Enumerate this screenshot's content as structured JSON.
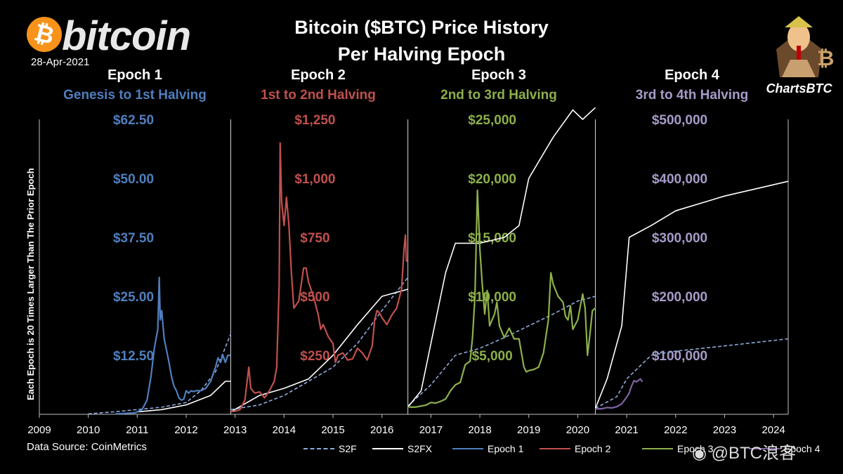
{
  "logo": {
    "word": "bitcoin",
    "symbol": "₿"
  },
  "date": "28-Apr-2021",
  "title_line1": "Bitcoin ($BTC) Price History",
  "title_line2": "Per Halving Epoch",
  "brand": "ChartsBTC",
  "y_axis_label": "Each Epoch is 20 Times Larger Than The Prior Epoch",
  "source": "Data Source: CoinMetrics",
  "watermark": "@BTC浪客",
  "colors": {
    "s2f": "#8eaadb",
    "s2fx": "#ffffff",
    "epoch1": "#4f7fbf",
    "epoch2": "#c0504d",
    "epoch3": "#8db04a",
    "epoch4": "#8064a2",
    "divider": "#d9d9d9"
  },
  "epochs": [
    {
      "name": "Epoch 1",
      "subtitle": "Genesis to 1st Halving",
      "color": "#4f7fbf",
      "ticks": [
        "$62.50",
        "$50.00",
        "$37.50",
        "$25.00",
        "$12.50"
      ]
    },
    {
      "name": "Epoch 2",
      "subtitle": "1st  to 2nd Halving",
      "color": "#c0504d",
      "ticks": [
        "$1,250",
        "$1,000",
        "$750",
        "$500",
        "$250"
      ]
    },
    {
      "name": "Epoch 3",
      "subtitle": "2nd to 3rd Halving",
      "color": "#8db04a",
      "ticks": [
        "$25,000",
        "$20,000",
        "$15,000",
        "$10,000",
        "$5,000"
      ]
    },
    {
      "name": "Epoch 4",
      "subtitle": "3rd to 4th Halving",
      "color": "#a79bc8",
      "ticks": [
        "$500,000",
        "$400,000",
        "$300,000",
        "$200,000",
        "$100,000"
      ]
    }
  ],
  "legend": [
    "S2F",
    "S2FX",
    "Epoch 1",
    "Epoch 2",
    "Epoch 3",
    "Epoch 4"
  ],
  "chart_data": {
    "type": "line",
    "title": "Bitcoin ($BTC) Price History Per Halving Epoch",
    "xlabel": "",
    "ylabel": "Each Epoch is 20 Times Larger Than The Prior Epoch",
    "x_ticks": [
      "2009",
      "2010",
      "2011",
      "2012",
      "2013",
      "2014",
      "2015",
      "2016",
      "2017",
      "2018",
      "2019",
      "2020",
      "2021",
      "2022",
      "2023",
      "2024"
    ],
    "xlim": [
      2009.0,
      2024.3
    ],
    "halvings": [
      2012.91,
      2016.53,
      2020.36
    ],
    "epoch_ranges": [
      {
        "epoch": "Epoch 1",
        "xlim": [
          2009.0,
          2012.91
        ],
        "ylim": [
          0,
          62.5
        ]
      },
      {
        "epoch": "Epoch 2",
        "xlim": [
          2012.91,
          2016.53
        ],
        "ylim": [
          0,
          1250
        ]
      },
      {
        "epoch": "Epoch 3",
        "xlim": [
          2016.53,
          2020.36
        ],
        "ylim": [
          0,
          25000
        ]
      },
      {
        "epoch": "Epoch 4",
        "xlim": [
          2020.36,
          2024.3
        ],
        "ylim": [
          0,
          500000
        ]
      }
    ],
    "series": [
      {
        "name": "Epoch 1",
        "epoch": 0,
        "points": [
          [
            2010.55,
            0.1
          ],
          [
            2010.75,
            0.2
          ],
          [
            2010.95,
            0.3
          ],
          [
            2011.1,
            1
          ],
          [
            2011.2,
            3
          ],
          [
            2011.28,
            8
          ],
          [
            2011.35,
            14
          ],
          [
            2011.42,
            18
          ],
          [
            2011.45,
            29
          ],
          [
            2011.47,
            20
          ],
          [
            2011.5,
            22
          ],
          [
            2011.55,
            16
          ],
          [
            2011.6,
            13.5
          ],
          [
            2011.65,
            11
          ],
          [
            2011.7,
            8
          ],
          [
            2011.75,
            6
          ],
          [
            2011.8,
            5
          ],
          [
            2011.85,
            3.5
          ],
          [
            2011.9,
            3
          ],
          [
            2011.95,
            3.2
          ],
          [
            2012.0,
            5
          ],
          [
            2012.05,
            4.5
          ],
          [
            2012.1,
            5
          ],
          [
            2012.15,
            4.8
          ],
          [
            2012.2,
            5
          ],
          [
            2012.3,
            5
          ],
          [
            2012.4,
            5.5
          ],
          [
            2012.5,
            7
          ],
          [
            2012.55,
            8.5
          ],
          [
            2012.6,
            10
          ],
          [
            2012.65,
            12
          ],
          [
            2012.7,
            11
          ],
          [
            2012.75,
            12.5
          ],
          [
            2012.8,
            11
          ],
          [
            2012.85,
            12.5
          ],
          [
            2012.9,
            12.5
          ]
        ]
      },
      {
        "name": "Epoch 2",
        "epoch": 1,
        "points": [
          [
            2012.91,
            12
          ],
          [
            2013.0,
            13
          ],
          [
            2013.1,
            20
          ],
          [
            2013.2,
            60
          ],
          [
            2013.28,
            200
          ],
          [
            2013.32,
            110
          ],
          [
            2013.4,
            90
          ],
          [
            2013.5,
            95
          ],
          [
            2013.6,
            70
          ],
          [
            2013.7,
            100
          ],
          [
            2013.8,
            140
          ],
          [
            2013.85,
            200
          ],
          [
            2013.9,
            550
          ],
          [
            2013.92,
            1150
          ],
          [
            2013.95,
            900
          ],
          [
            2014.0,
            800
          ],
          [
            2014.05,
            920
          ],
          [
            2014.1,
            800
          ],
          [
            2014.15,
            600
          ],
          [
            2014.2,
            450
          ],
          [
            2014.3,
            480
          ],
          [
            2014.4,
            620
          ],
          [
            2014.45,
            620
          ],
          [
            2014.5,
            560
          ],
          [
            2014.6,
            500
          ],
          [
            2014.7,
            420
          ],
          [
            2014.75,
            360
          ],
          [
            2014.8,
            380
          ],
          [
            2014.9,
            330
          ],
          [
            2015.0,
            300
          ],
          [
            2015.05,
            220
          ],
          [
            2015.1,
            250
          ],
          [
            2015.2,
            260
          ],
          [
            2015.3,
            230
          ],
          [
            2015.4,
            235
          ],
          [
            2015.5,
            280
          ],
          [
            2015.6,
            260
          ],
          [
            2015.7,
            230
          ],
          [
            2015.8,
            290
          ],
          [
            2015.85,
            400
          ],
          [
            2015.9,
            440
          ],
          [
            2015.95,
            430
          ],
          [
            2016.0,
            410
          ],
          [
            2016.1,
            380
          ],
          [
            2016.2,
            420
          ],
          [
            2016.3,
            450
          ],
          [
            2016.4,
            530
          ],
          [
            2016.45,
            700
          ],
          [
            2016.48,
            760
          ],
          [
            2016.5,
            650
          ],
          [
            2016.53,
            650
          ]
        ]
      },
      {
        "name": "Epoch 3",
        "epoch": 2,
        "points": [
          [
            2016.53,
            650
          ],
          [
            2016.6,
            600
          ],
          [
            2016.7,
            620
          ],
          [
            2016.8,
            700
          ],
          [
            2016.9,
            780
          ],
          [
            2017.0,
            1000
          ],
          [
            2017.1,
            950
          ],
          [
            2017.2,
            1100
          ],
          [
            2017.3,
            1300
          ],
          [
            2017.4,
            2000
          ],
          [
            2017.5,
            2500
          ],
          [
            2017.6,
            2700
          ],
          [
            2017.7,
            4200
          ],
          [
            2017.8,
            4500
          ],
          [
            2017.85,
            6500
          ],
          [
            2017.9,
            10000
          ],
          [
            2017.95,
            19000
          ],
          [
            2018.0,
            14000
          ],
          [
            2018.05,
            11000
          ],
          [
            2018.1,
            8500
          ],
          [
            2018.15,
            10500
          ],
          [
            2018.2,
            7500
          ],
          [
            2018.3,
            8500
          ],
          [
            2018.35,
            9500
          ],
          [
            2018.4,
            7500
          ],
          [
            2018.5,
            6500
          ],
          [
            2018.6,
            7300
          ],
          [
            2018.7,
            6400
          ],
          [
            2018.8,
            6400
          ],
          [
            2018.9,
            4000
          ],
          [
            2018.95,
            3600
          ],
          [
            2019.0,
            3700
          ],
          [
            2019.1,
            3800
          ],
          [
            2019.2,
            4000
          ],
          [
            2019.3,
            5200
          ],
          [
            2019.4,
            8000
          ],
          [
            2019.45,
            12000
          ],
          [
            2019.5,
            11000
          ],
          [
            2019.6,
            10000
          ],
          [
            2019.7,
            9500
          ],
          [
            2019.75,
            8300
          ],
          [
            2019.8,
            8000
          ],
          [
            2019.85,
            9200
          ],
          [
            2019.9,
            7200
          ],
          [
            2020.0,
            8000
          ],
          [
            2020.1,
            10200
          ],
          [
            2020.15,
            9000
          ],
          [
            2020.2,
            5000
          ],
          [
            2020.25,
            6800
          ],
          [
            2020.3,
            8800
          ],
          [
            2020.36,
            9000
          ]
        ]
      },
      {
        "name": "Epoch 4",
        "epoch": 3,
        "points": [
          [
            2020.36,
            9000
          ],
          [
            2020.5,
            9500
          ],
          [
            2020.6,
            11500
          ],
          [
            2020.7,
            10800
          ],
          [
            2020.8,
            13000
          ],
          [
            2020.9,
            18000
          ],
          [
            2021.0,
            29000
          ],
          [
            2021.05,
            36000
          ],
          [
            2021.1,
            48000
          ],
          [
            2021.15,
            57000
          ],
          [
            2021.2,
            55000
          ],
          [
            2021.28,
            60000
          ],
          [
            2021.32,
            55000
          ]
        ]
      },
      {
        "name": "S2F",
        "piecewise": true,
        "points": [
          [
            2010.0,
            0.1
          ],
          [
            2010.5,
            0.5
          ],
          [
            2011.0,
            1
          ],
          [
            2011.5,
            1.5
          ],
          [
            2012.0,
            2.5
          ],
          [
            2012.3,
            5
          ],
          [
            2012.6,
            9
          ],
          [
            2012.91,
            17
          ],
          [
            2012.91,
            20
          ],
          [
            2013.5,
            40
          ],
          [
            2014.0,
            80
          ],
          [
            2014.5,
            140
          ],
          [
            2015.0,
            200
          ],
          [
            2015.5,
            300
          ],
          [
            2016.0,
            440
          ],
          [
            2016.53,
            580
          ],
          [
            2016.53,
            700
          ],
          [
            2017.0,
            2500
          ],
          [
            2017.5,
            5000
          ],
          [
            2018.0,
            5600
          ],
          [
            2018.5,
            6500
          ],
          [
            2019.0,
            7500
          ],
          [
            2019.5,
            8500
          ],
          [
            2020.0,
            9600
          ],
          [
            2020.36,
            10000
          ],
          [
            2020.36,
            10000
          ],
          [
            2020.8,
            30000
          ],
          [
            2021.0,
            60000
          ],
          [
            2021.5,
            100000
          ],
          [
            2022.0,
            107000
          ],
          [
            2023.0,
            116000
          ],
          [
            2024.3,
            128000
          ]
        ]
      },
      {
        "name": "S2FX",
        "piecewise": true,
        "points": [
          [
            2011.0,
            0.5
          ],
          [
            2011.5,
            1
          ],
          [
            2012.0,
            2
          ],
          [
            2012.5,
            4
          ],
          [
            2012.8,
            7
          ],
          [
            2012.91,
            7
          ],
          [
            2012.91,
            10
          ],
          [
            2013.5,
            80
          ],
          [
            2014.0,
            110
          ],
          [
            2014.5,
            150
          ],
          [
            2015.0,
            250
          ],
          [
            2015.5,
            380
          ],
          [
            2016.0,
            500
          ],
          [
            2016.53,
            530
          ],
          [
            2016.53,
            600
          ],
          [
            2016.8,
            2000
          ],
          [
            2017.0,
            6000
          ],
          [
            2017.3,
            12000
          ],
          [
            2017.5,
            14500
          ],
          [
            2018.0,
            14500
          ],
          [
            2018.5,
            15000
          ],
          [
            2018.8,
            16000
          ],
          [
            2019.0,
            20000
          ],
          [
            2019.5,
            23500
          ],
          [
            2019.9,
            25800
          ],
          [
            2020.1,
            25000
          ],
          [
            2020.36,
            26000
          ],
          [
            2020.36,
            10000
          ],
          [
            2020.6,
            60000
          ],
          [
            2020.9,
            150000
          ],
          [
            2021.05,
            300000
          ],
          [
            2021.5,
            320000
          ],
          [
            2022.0,
            345000
          ],
          [
            2023.0,
            370000
          ],
          [
            2024.3,
            395000
          ]
        ]
      }
    ],
    "grid": false,
    "legend_position": "bottom"
  }
}
